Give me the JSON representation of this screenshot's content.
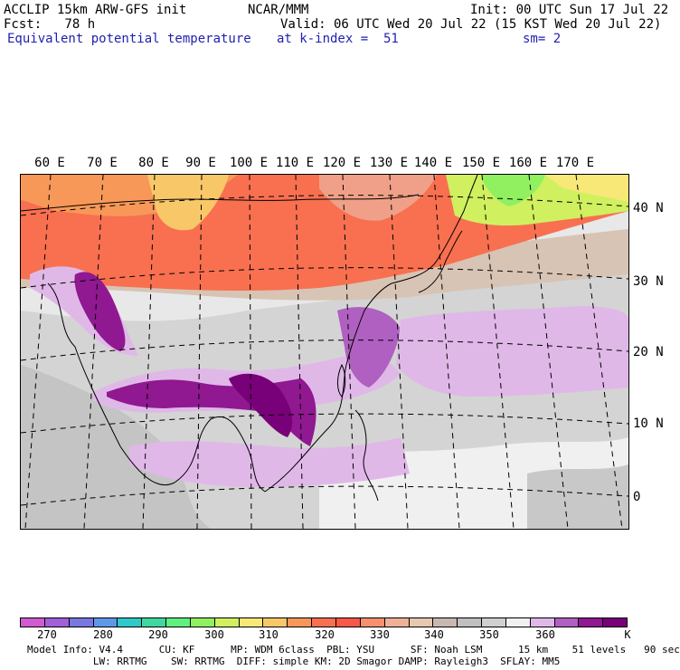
{
  "header": {
    "left_line1": "ACCLIP 15km ARW-GFS init",
    "left_line2": "Fcst:   78 h",
    "left_line3": "Equivalent potential temperature",
    "center_line1": "NCAR/MMM",
    "center_line2": "Valid: 06 UTC Wed 20 Jul 22 (15 KST Wed 20 Jul 22)",
    "center_line3": "at k-index =  51",
    "right_line1": "Init: 00 UTC Sun 17 Jul 22",
    "right_line3": "sm= 2"
  },
  "map": {
    "lon_labels": [
      "60 E",
      "70 E",
      "80 E",
      "90 E",
      "100 E",
      "110 E",
      "120 E",
      "130 E",
      "140 E",
      "150 E",
      "160 E",
      "170 E"
    ],
    "lat_labels": [
      "40 N",
      "30 N",
      "20 N",
      "10 N",
      "0"
    ]
  },
  "colorbar": {
    "colors": [
      "#d05ad0",
      "#a060d8",
      "#7878e0",
      "#6098e8",
      "#30c8c8",
      "#40d8a0",
      "#60f080",
      "#90f060",
      "#d0f060",
      "#f8e878",
      "#f8c868",
      "#f89858",
      "#f87050",
      "#f85848",
      "#f89070",
      "#f0b098",
      "#e8c8b0",
      "#c8b8b0",
      "#c0c0c0",
      "#d0d0d0",
      "#f0f0f0",
      "#e0b8e8",
      "#b060c0",
      "#901890",
      "#780078"
    ],
    "labels": [
      "270",
      "280",
      "290",
      "300",
      "310",
      "320",
      "330",
      "340",
      "350",
      "360",
      "K"
    ]
  },
  "footer": {
    "line1": "Model Info: V4.4      CU: KF      MP: WDM 6class  PBL: YSU      SF: Noah LSM      15 km    51 levels   90 sec",
    "line2": "           LW: RRTMG    SW: RRTMG  DIFF: simple KM: 2D Smagor DAMP: Rayleigh3  SFLAY: MM5"
  }
}
